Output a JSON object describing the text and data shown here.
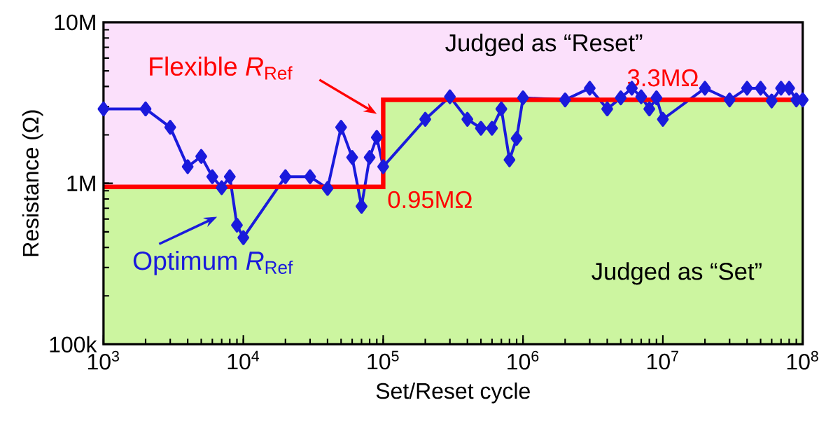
{
  "chart_data": {
    "type": "line",
    "xlabel": "Set/Reset cycle",
    "ylabel": "Resistance (Ω)",
    "log": "xy",
    "xlim": [
      1000,
      100000000
    ],
    "ylim": [
      100000,
      10000000
    ],
    "xticks": [
      {
        "value": 1000,
        "label": "10$^{3}$"
      },
      {
        "value": 10000,
        "label": "10$^{4}$"
      },
      {
        "value": 100000,
        "label": "10$^{5}$"
      },
      {
        "value": 1000000,
        "label": "10$^{6}$"
      },
      {
        "value": 10000000,
        "label": "10$^{7}$"
      },
      {
        "value": 100000000,
        "label": "10$^{8}$"
      }
    ],
    "yticks": [
      {
        "value": 100000,
        "label": "100k"
      },
      {
        "value": 1000000,
        "label": "1M"
      },
      {
        "value": 10000000,
        "label": "10M"
      }
    ],
    "bands": [
      {
        "axis": "y",
        "from": 100000,
        "to": 10000000,
        "color": "#fbe0fb"
      }
    ],
    "series": [
      {
        "type": "area",
        "color": "#ccf5a0",
        "x": [
          1000,
          100000,
          100000000
        ],
        "values": [
          950000,
          3300000,
          3300000
        ]
      },
      {
        "name": "Optimum *R*$_{Ref}$",
        "color": "#1a1adc",
        "marker": "diamond",
        "x": [
          1000,
          2000,
          3000,
          4000,
          5000,
          6000,
          7000,
          8000,
          9000,
          10000,
          20000,
          30000,
          40000,
          50000,
          60000,
          70000,
          80000,
          90000,
          100000,
          200000,
          300000,
          400000,
          500000,
          600000,
          700000,
          800000,
          900000,
          1000000,
          2000000,
          3000000,
          4000000,
          5000000,
          6000000,
          7000000,
          8000000,
          9000000,
          10000000,
          20000000,
          30000000,
          40000000,
          50000000,
          60000000,
          70000000,
          80000000,
          90000000,
          100000000
        ],
        "values": [
          2900000,
          2900000,
          2230000,
          1270000,
          1470000,
          1100000,
          940000,
          1100000,
          550000,
          460000,
          1100000,
          1100000,
          930000,
          2230000,
          1450000,
          720000,
          1450000,
          1930000,
          1270000,
          2500000,
          3450000,
          2500000,
          2200000,
          2200000,
          2900000,
          1400000,
          1900000,
          3400000,
          3300000,
          3900000,
          2900000,
          3400000,
          3900000,
          3450000,
          2900000,
          3400000,
          2500000,
          3900000,
          3300000,
          3900000,
          3900000,
          3250000,
          3900000,
          3900000,
          3300000,
          3300000
        ]
      },
      {
        "type": "step",
        "name": "Flexible *R*$_{Ref}$",
        "color": "#ff0000",
        "x": [
          1000,
          100000,
          100000000
        ],
        "values": [
          950000,
          3300000,
          3300000
        ]
      }
    ],
    "annotations": [
      "Judged as “Reset”",
      "Judged as “Set”",
      {
        "text": "0.95MΩ",
        "x": 100000,
        "y": 950000
      },
      {
        "text": "3.3MΩ",
        "x": 10000000,
        "y": 3300000
      }
    ]
  }
}
